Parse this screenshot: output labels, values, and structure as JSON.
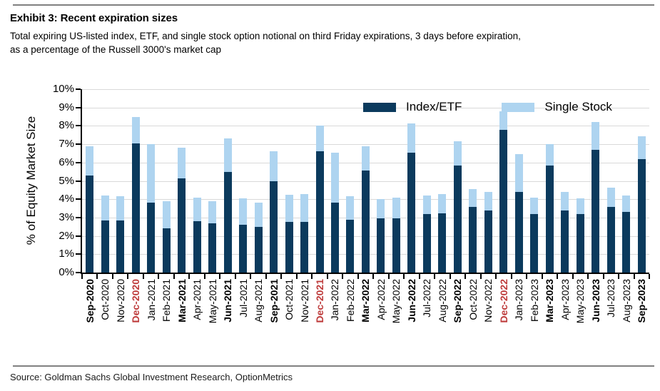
{
  "header": {
    "title": "Exhibit 3: Recent expiration sizes",
    "subtitle": "Total expiring US-listed index, ETF, and single stock option notional on third Friday expirations, 3 days before expiration, as a percentage of the Russell 3000's market cap"
  },
  "footer": {
    "source": "Source: Goldman Sachs Global Investment Research, OptionMetrics"
  },
  "colors": {
    "index_etf": "#0b3a5d",
    "single_stock": "#aed4f0",
    "gridline": "#d9d9d9",
    "axis": "#000000",
    "red_label": "#be3b3b",
    "rule_gray": "#808080"
  },
  "chart_data": {
    "type": "bar",
    "stacked": true,
    "title": "Exhibit 3: Recent expiration sizes",
    "ylabel": "% of Equity Market Size",
    "ylim": [
      0,
      10
    ],
    "ytick_step": 1,
    "ytick_suffix": "%",
    "grid": true,
    "legend_position": "top-inside",
    "categories": [
      "Sep-2020",
      "Oct-2020",
      "Nov-2020",
      "Dec-2020",
      "Jan-2021",
      "Feb-2021",
      "Mar-2021",
      "Apr-2021",
      "May-2021",
      "Jun-2021",
      "Jul-2021",
      "Aug-2021",
      "Sep-2021",
      "Oct-2021",
      "Nov-2021",
      "Dec-2021",
      "Jan-2022",
      "Feb-2022",
      "Mar-2022",
      "Apr-2022",
      "May-2022",
      "Jun-2022",
      "Jul-2022",
      "Aug-2022",
      "Sep-2022",
      "Oct-2022",
      "Nov-2022",
      "Dec-2022",
      "Jan-2023",
      "Feb-2023",
      "Mar-2023",
      "Apr-2023",
      "May-2023",
      "Jun-2023",
      "Jul-2023",
      "Aug-2023",
      "Sep-2023"
    ],
    "category_emphasis": {
      "bold_months": [
        "Sep",
        "Mar",
        "Jun"
      ],
      "red_months": [
        "Dec"
      ]
    },
    "series": [
      {
        "name": "Index/ETF",
        "color": "#0b3a5d",
        "values": [
          5.3,
          2.85,
          2.85,
          7.05,
          3.8,
          2.4,
          5.15,
          2.8,
          2.7,
          5.5,
          2.6,
          2.5,
          5.0,
          2.75,
          2.75,
          6.6,
          3.8,
          2.9,
          5.55,
          2.95,
          2.95,
          6.55,
          3.2,
          3.25,
          5.85,
          3.6,
          3.4,
          7.8,
          4.4,
          3.2,
          5.85,
          3.4,
          3.2,
          6.7,
          3.6,
          3.3,
          6.2
        ]
      },
      {
        "name": "Single Stock",
        "color": "#aed4f0",
        "values": [
          1.6,
          1.35,
          1.3,
          1.45,
          3.2,
          1.5,
          1.65,
          1.3,
          1.2,
          1.8,
          1.45,
          1.3,
          1.6,
          1.5,
          1.55,
          1.4,
          2.75,
          1.25,
          1.35,
          1.05,
          1.15,
          1.6,
          1.0,
          1.05,
          1.3,
          0.95,
          1.0,
          1.0,
          2.05,
          0.9,
          1.15,
          1.0,
          0.85,
          1.5,
          1.05,
          0.9,
          1.25
        ]
      }
    ]
  }
}
